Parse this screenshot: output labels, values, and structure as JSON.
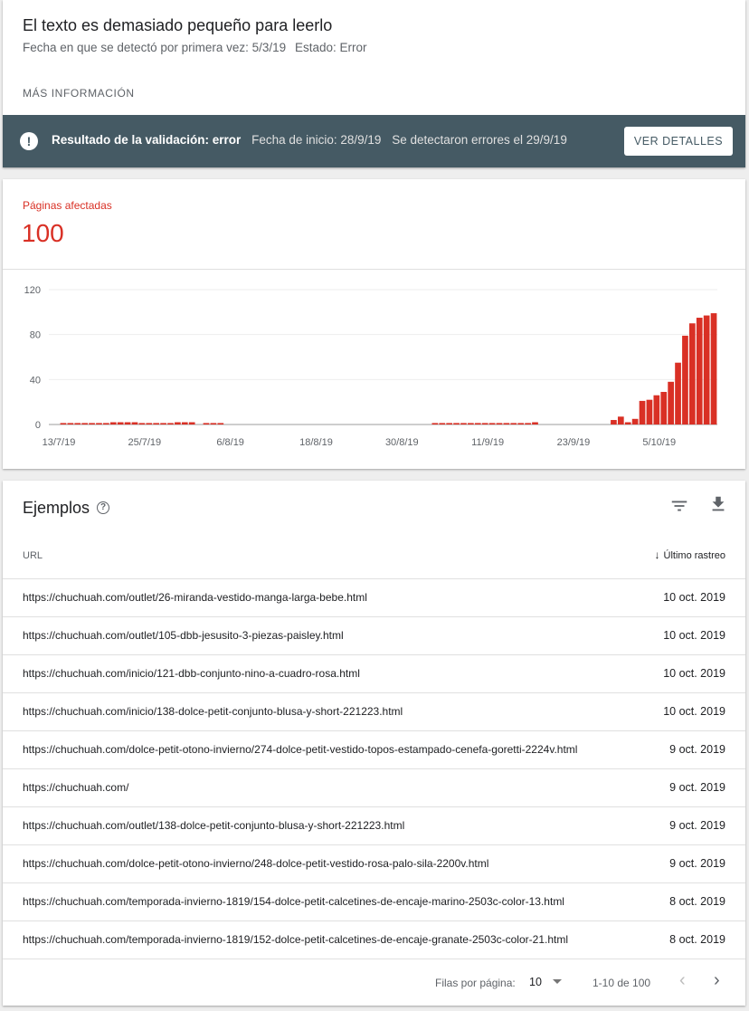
{
  "issue": {
    "title": "El texto es demasiado pequeño para leerlo",
    "first_detected": "Fecha en que se detectó por primera vez: 5/3/19",
    "status": "Estado: Error",
    "more_info": "MÁS INFORMACIÓN"
  },
  "validation": {
    "icon": "alert-icon",
    "result": "Resultado de la validación: error",
    "start_date": "Fecha de inicio: 28/9/19",
    "errors_detected": "Se detectaron errores el 29/9/19",
    "details_button": "VER DETALLES",
    "bar_color": "#455a64"
  },
  "affected": {
    "label": "Páginas afectadas",
    "value": "100",
    "color": "#d93025"
  },
  "chart_data": {
    "type": "bar",
    "color": "#d93025",
    "ylim": [
      0,
      120
    ],
    "yticks": [
      0,
      40,
      80,
      120
    ],
    "xtick_labels": [
      "13/7/19",
      "25/7/19",
      "6/8/19",
      "18/8/19",
      "30/8/19",
      "11/9/19",
      "23/9/19",
      "5/10/19"
    ],
    "xtick_days": [
      0,
      12,
      24,
      36,
      48,
      60,
      72,
      84
    ],
    "start_date": "2019-07-13",
    "values": [
      1,
      1,
      1,
      1,
      1,
      1,
      1,
      2,
      2,
      2,
      2,
      1,
      1,
      1,
      1,
      1,
      2,
      2,
      2,
      0,
      1,
      1,
      1,
      0,
      0,
      0,
      0,
      0,
      0,
      0,
      0,
      0,
      0,
      0,
      0,
      0,
      0,
      0,
      0,
      0,
      0,
      0,
      0,
      0,
      0,
      0,
      0,
      0,
      0,
      0,
      0,
      0,
      1,
      1,
      1,
      1,
      1,
      1,
      1,
      1,
      1,
      1,
      1,
      1,
      1,
      1,
      2,
      0,
      0,
      0,
      0,
      0,
      0,
      0,
      0,
      0,
      0,
      4,
      7,
      2,
      5,
      21,
      22,
      26,
      29,
      38,
      55,
      79,
      90,
      95,
      97,
      99
    ]
  },
  "examples": {
    "title": "Ejemplos",
    "col_url": "URL",
    "col_crawl": "Último rastreo",
    "rows": [
      {
        "url": "https://chuchuah.com/outlet/26-miranda-vestido-manga-larga-bebe.html",
        "date": "10 oct. 2019"
      },
      {
        "url": "https://chuchuah.com/outlet/105-dbb-jesusito-3-piezas-paisley.html",
        "date": "10 oct. 2019"
      },
      {
        "url": "https://chuchuah.com/inicio/121-dbb-conjunto-nino-a-cuadro-rosa.html",
        "date": "10 oct. 2019"
      },
      {
        "url": "https://chuchuah.com/inicio/138-dolce-petit-conjunto-blusa-y-short-221223.html",
        "date": "10 oct. 2019"
      },
      {
        "url": "https://chuchuah.com/dolce-petit-otono-invierno/274-dolce-petit-vestido-topos-estampado-cenefa-goretti-2224v.html",
        "date": "9 oct. 2019"
      },
      {
        "url": "https://chuchuah.com/",
        "date": "9 oct. 2019"
      },
      {
        "url": "https://chuchuah.com/outlet/138-dolce-petit-conjunto-blusa-y-short-221223.html",
        "date": "9 oct. 2019"
      },
      {
        "url": "https://chuchuah.com/dolce-petit-otono-invierno/248-dolce-petit-vestido-rosa-palo-sila-2200v.html",
        "date": "9 oct. 2019"
      },
      {
        "url": "https://chuchuah.com/temporada-invierno-1819/154-dolce-petit-calcetines-de-encaje-marino-2503c-color-13.html",
        "date": "8 oct. 2019"
      },
      {
        "url": "https://chuchuah.com/temporada-invierno-1819/152-dolce-petit-calcetines-de-encaje-granate-2503c-color-21.html",
        "date": "8 oct. 2019"
      }
    ]
  },
  "pagination": {
    "rows_per_page_label": "Filas por página:",
    "rows_per_page": "10",
    "range": "1-10 de 100",
    "prev_icon": "chevron-left-icon",
    "next_icon": "chevron-right-icon"
  }
}
